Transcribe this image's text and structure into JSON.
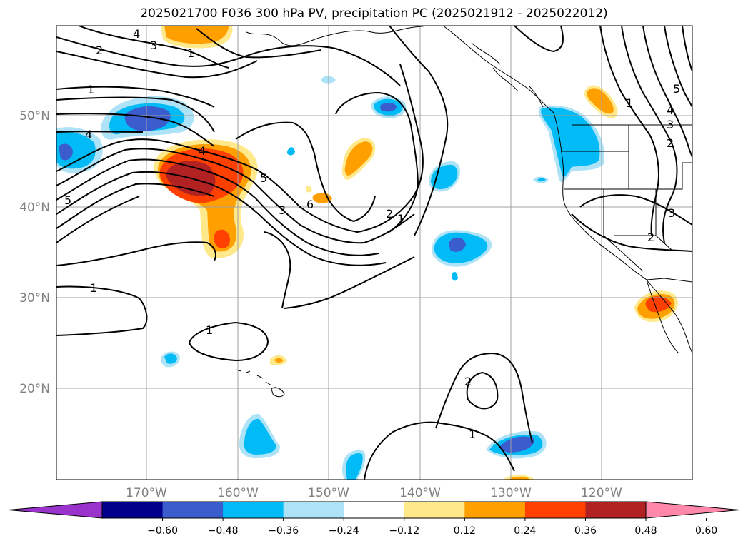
{
  "title": "2025021700 F036 300 hPa PV, precipitation PC (2025021912 - 2025022012)",
  "lat_labels": [
    "50°N",
    "40°N",
    "30°N",
    "20°N"
  ],
  "lon_labels": [
    "170°W",
    "160°W",
    "150°W",
    "140°W",
    "130°W",
    "120°W"
  ],
  "colorbar": {
    "ticks": [
      "−0.60",
      "−0.48",
      "−0.36",
      "−0.24",
      "−0.12",
      "0.12",
      "0.24",
      "0.36",
      "0.48",
      "0.60"
    ],
    "colors": [
      "#9933cc",
      "#00008b",
      "#3a5ccc",
      "#00bbf5",
      "#aee3f7",
      "#ffffff",
      "#ffe98a",
      "#ffa000",
      "#ff4000",
      "#b22222",
      "#ff88aa"
    ]
  },
  "contour_labels": [
    "4",
    "3",
    "2",
    "1",
    "1",
    "4",
    "5",
    "4",
    "5",
    "3",
    "6",
    "2",
    "1",
    "1",
    "1",
    "2",
    "1",
    "1",
    "5",
    "4",
    "3",
    "2",
    "3",
    "2"
  ],
  "colors": {
    "land_coast": "#000000",
    "grid": "#a0a0a0"
  }
}
